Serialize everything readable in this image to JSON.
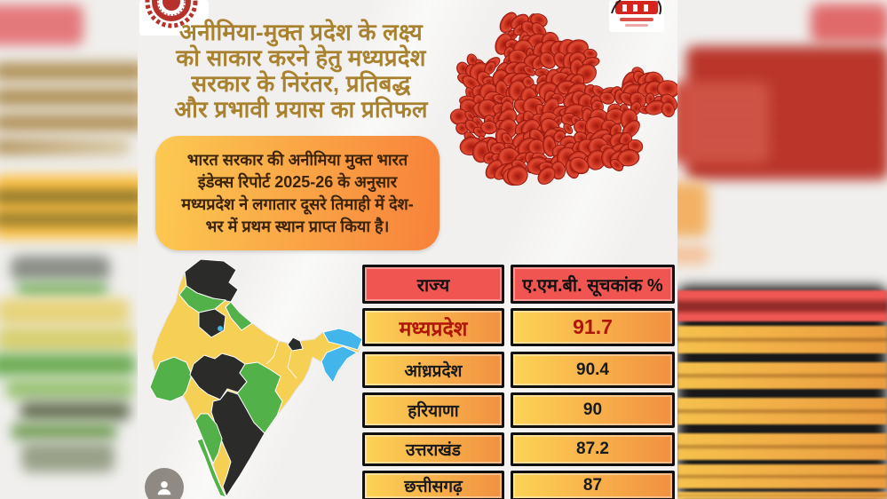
{
  "poster": {
    "headline_lines": [
      "अनीमिया-मुक्त प्रदेश के लक्ष्य",
      "को साकार करने हेतु मध्यप्रदेश",
      "सरकार के  निरंतर, प्रतिबद्ध",
      "और प्रभावी प्रयास  का प्रतिफल"
    ],
    "info_box_lines": [
      "भारत सरकार की अनीमिया मुक्त भारत",
      "इंडेक्स रिपोर्ट 2025-26 के अनुसार",
      "मध्यप्रदेश ने लगातार दूसरे तिमाही में देश-",
      "भर में प्रथम स्थान प्राप्त किया है।"
    ],
    "table": {
      "col_headers": [
        "राज्य",
        "ए.एम.बी. सूचकांक %"
      ],
      "rows": [
        {
          "state": "मध्यप्रदेश",
          "value": "91.7"
        },
        {
          "state": "आंध्रप्रदेश",
          "value": "90.4"
        },
        {
          "state": "हरियाणा",
          "value": "90"
        },
        {
          "state": "उत्तराखंड",
          "value": "87.2"
        },
        {
          "state": "छत्तीसगढ़",
          "value": "87"
        }
      ]
    },
    "logos": {
      "top_left": "madhya-pradesh-government-emblem",
      "top_right": "nhm-logo"
    },
    "illustrations": {
      "blood_cells": "madhya-pradesh-state-shape-made-of-red-blood-cells",
      "map": "india-choropleth-map"
    }
  },
  "viewer": {
    "avatar_icon": "person-icon"
  },
  "chart_data": {
    "type": "table",
    "title": "ए.एम.बी. सूचकांक %",
    "categories": [
      "मध्यप्रदेश",
      "आंध्रप्रदेश",
      "हरियाणा",
      "उत्तराखंड",
      "छत्तीसगढ़"
    ],
    "values": [
      91.7,
      90.4,
      90,
      87.2,
      87
    ],
    "highlight_category": "मध्यप्रदेश"
  },
  "colors": {
    "header_red": "#f15551",
    "cell_gradient_start": "#fdd355",
    "cell_gradient_end": "#f29040",
    "highlight_text": "#b01607",
    "headline_gold": "#a98230",
    "infobox_start": "#fcca52",
    "infobox_end": "#f8813a",
    "blood_red": "#c22a1c",
    "map_yellow": "#f6d054",
    "map_green": "#53b149",
    "map_dark": "#2b2b29",
    "map_blue": "#42b5ea"
  }
}
